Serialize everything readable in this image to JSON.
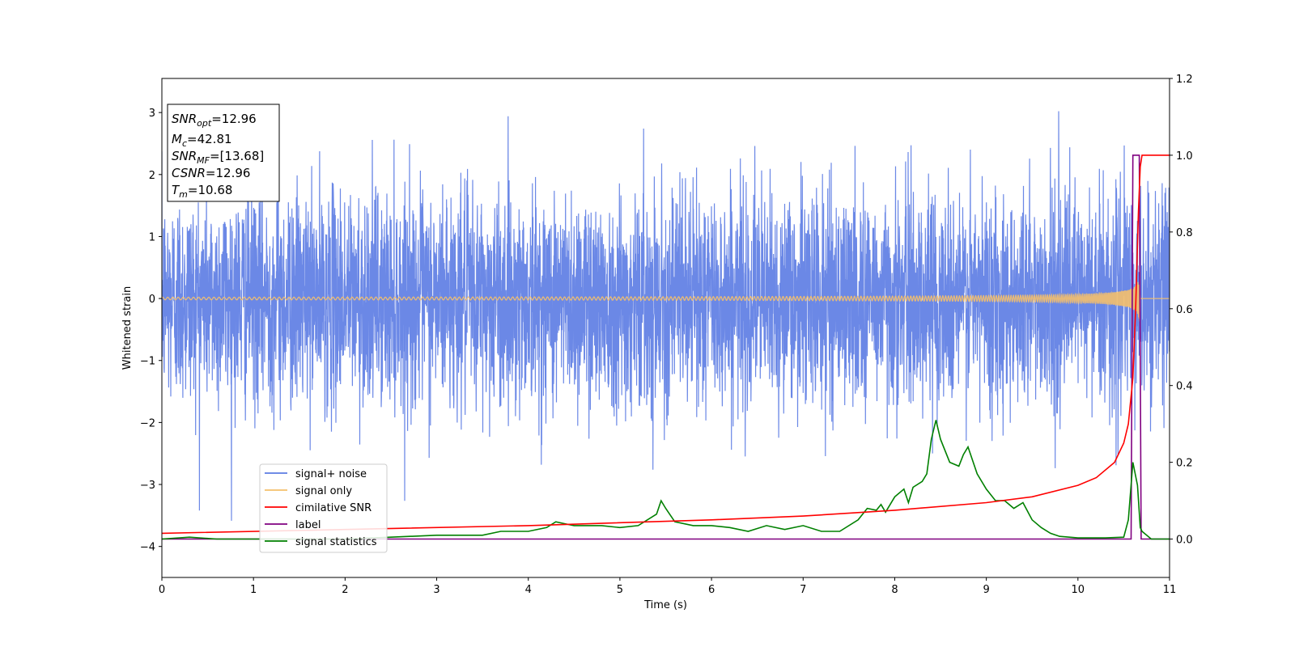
{
  "chart_data": {
    "type": "line",
    "title": "",
    "xlabel": "Time (s)",
    "ylabel": "Whitened strain",
    "xlim": [
      0,
      11
    ],
    "ylim": [
      -4.5,
      3.55
    ],
    "y2lim": [
      -0.1,
      1.2
    ],
    "xticks": [
      "0",
      "1",
      "2",
      "3",
      "4",
      "5",
      "6",
      "7",
      "8",
      "9",
      "10",
      "11"
    ],
    "yticks": [
      "3",
      "2",
      "1",
      "0",
      "−1",
      "−2",
      "−3",
      "−4"
    ],
    "y2ticks": [
      "1.2",
      "1.0",
      "0.8",
      "0.6",
      "0.4",
      "0.2",
      "0.0"
    ],
    "grid": false,
    "legend_position": "lower-left",
    "info_box": [
      {
        "var": "SNR",
        "sub": "opt",
        "text": "=12.96"
      },
      {
        "var": "M",
        "sub": "c",
        "text": "=42.81"
      },
      {
        "var": "SNR",
        "sub": "MF",
        "text": "=[13.68]"
      },
      {
        "var": "CSNR",
        "sub": "",
        "text": "=12.96"
      },
      {
        "var": "T",
        "sub": "m",
        "text": "=10.68"
      }
    ],
    "series": [
      {
        "name": "signal+ noise",
        "axis": "left",
        "color": "#5b7be3",
        "note_noise_std": 0.85,
        "x": [
          0,
          11
        ],
        "y": [
          0,
          0
        ]
      },
      {
        "name": "signal only",
        "axis": "left",
        "color": "#f5c06b",
        "chirp_end": 10.68,
        "x": [
          0,
          11
        ],
        "y": [
          0,
          0
        ]
      },
      {
        "name": "cimilative SNR",
        "axis": "right",
        "color": "#ff0000",
        "x": [
          0,
          2,
          4,
          6,
          7,
          8,
          9,
          9.5,
          10,
          10.2,
          10.4,
          10.5,
          10.55,
          10.6,
          10.63,
          10.66,
          10.68,
          10.7,
          11
        ],
        "y": [
          0.015,
          0.025,
          0.035,
          0.05,
          0.06,
          0.075,
          0.095,
          0.11,
          0.14,
          0.16,
          0.2,
          0.25,
          0.3,
          0.42,
          0.6,
          0.85,
          0.97,
          1.0,
          1.0
        ]
      },
      {
        "name": "label",
        "axis": "right",
        "color": "#800080",
        "x": [
          0,
          10.58,
          10.6,
          10.67,
          10.69,
          11
        ],
        "y": [
          0,
          0,
          1.0,
          1.0,
          0,
          0
        ]
      },
      {
        "name": "signal statistics",
        "axis": "right",
        "color": "#008000",
        "x": [
          0,
          0.3,
          0.6,
          1.0,
          2.0,
          2.5,
          3.0,
          3.5,
          3.7,
          4.0,
          4.2,
          4.3,
          4.4,
          4.5,
          4.8,
          5.0,
          5.2,
          5.4,
          5.45,
          5.5,
          5.6,
          5.8,
          6.0,
          6.2,
          6.4,
          6.6,
          6.8,
          7.0,
          7.2,
          7.4,
          7.6,
          7.7,
          7.8,
          7.85,
          7.9,
          8.0,
          8.1,
          8.15,
          8.2,
          8.3,
          8.35,
          8.4,
          8.45,
          8.5,
          8.6,
          8.7,
          8.75,
          8.8,
          8.9,
          9.0,
          9.1,
          9.2,
          9.3,
          9.4,
          9.5,
          9.6,
          9.7,
          9.8,
          10.0,
          10.3,
          10.5,
          10.55,
          10.6,
          10.65,
          10.68,
          10.7,
          10.8,
          11.0
        ],
        "y": [
          0.0,
          0.005,
          0.0,
          0.0,
          0.0,
          0.005,
          0.01,
          0.01,
          0.02,
          0.02,
          0.03,
          0.045,
          0.04,
          0.035,
          0.035,
          0.03,
          0.035,
          0.065,
          0.1,
          0.08,
          0.045,
          0.035,
          0.035,
          0.03,
          0.02,
          0.035,
          0.025,
          0.035,
          0.02,
          0.02,
          0.05,
          0.08,
          0.075,
          0.09,
          0.07,
          0.11,
          0.13,
          0.095,
          0.135,
          0.15,
          0.17,
          0.26,
          0.31,
          0.26,
          0.2,
          0.19,
          0.22,
          0.24,
          0.17,
          0.13,
          0.1,
          0.1,
          0.08,
          0.095,
          0.05,
          0.03,
          0.015,
          0.007,
          0.003,
          0.003,
          0.005,
          0.05,
          0.2,
          0.14,
          0.03,
          0.02,
          0.0,
          0.0
        ]
      }
    ]
  }
}
